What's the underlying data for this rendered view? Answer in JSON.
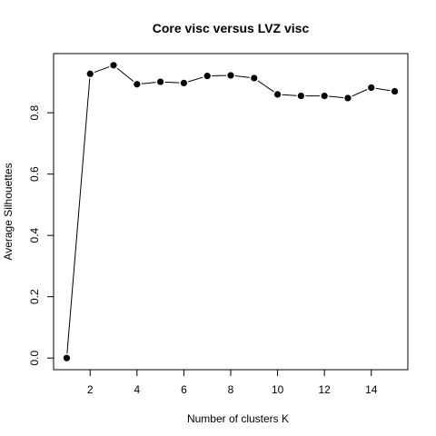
{
  "chart_data": {
    "type": "line",
    "title": "Core visc versus LVZ visc",
    "xlabel": "Number of clusters K",
    "ylabel": "Average Silhouettes",
    "xlim": [
      0.44,
      15.56
    ],
    "ylim": [
      -0.038,
      0.993
    ],
    "xticks": [
      2,
      4,
      6,
      8,
      10,
      12,
      14
    ],
    "yticks": [
      0.0,
      0.2,
      0.4,
      0.6,
      0.8
    ],
    "ytick_labels": [
      "0.0",
      "0.2",
      "0.4",
      "0.6",
      "0.8"
    ],
    "grid": false,
    "marker": "filled-circle",
    "line_color": "#000000",
    "point_color": "#000000",
    "series": [
      {
        "x": [
          1,
          2,
          3,
          4,
          5,
          6,
          7,
          8,
          9,
          10,
          11,
          12,
          13,
          14,
          15
        ],
        "y": [
          0.0,
          0.927,
          0.955,
          0.893,
          0.901,
          0.897,
          0.92,
          0.922,
          0.913,
          0.86,
          0.855,
          0.855,
          0.848,
          0.882,
          0.87
        ]
      }
    ]
  }
}
